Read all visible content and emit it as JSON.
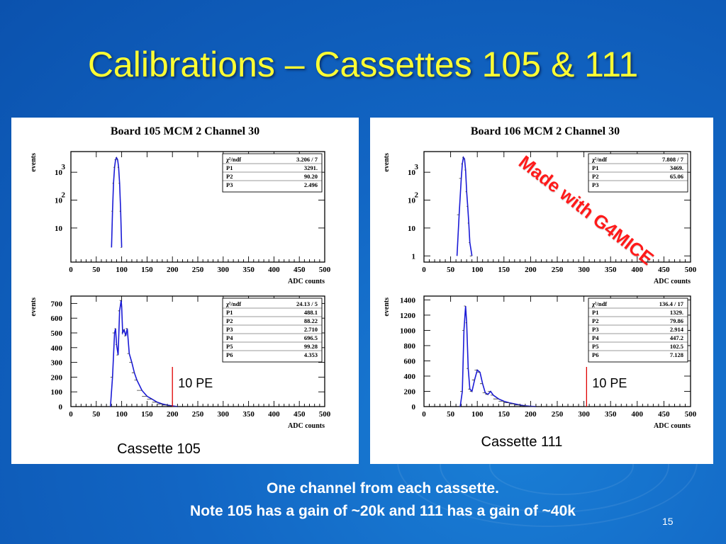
{
  "slide": {
    "title": "Calibrations – Cassettes 105 & 111",
    "stamp": "Made with G4MICE",
    "footer_line1": "One channel from each cassette.",
    "footer_line2": "Note 105 has a gain of ~20k and 111 has a gain of ~40k",
    "page_number": "15"
  },
  "chart_data": [
    {
      "panel": "left",
      "type": "histogram",
      "title": "Board 105 MCM 2 Channel 30",
      "xlabel": "ADC counts",
      "ylabel": "events",
      "x_ticks": [
        "0",
        "50",
        "100",
        "150",
        "200",
        "250",
        "300",
        "350",
        "400",
        "450",
        "500"
      ],
      "xlim": [
        0,
        500
      ],
      "yscale": "log",
      "y_ticks": [
        "10",
        "10 2",
        "10 3"
      ],
      "stats": [
        [
          "χ²/ndf",
          "3.206 / 7"
        ],
        [
          "P1",
          "3291."
        ],
        [
          "P2",
          "90.20"
        ],
        [
          "P3",
          "2.496"
        ]
      ],
      "x": [
        80,
        82,
        84,
        86,
        88,
        90,
        92,
        94,
        96,
        98,
        100
      ],
      "y": [
        2,
        40,
        400,
        1500,
        2800,
        3300,
        2800,
        1500,
        400,
        40,
        2
      ],
      "color": "#1a1ad6"
    },
    {
      "panel": "left",
      "type": "histogram",
      "title": "",
      "xlabel": "ADC counts",
      "ylabel": "events",
      "x_ticks": [
        "0",
        "50",
        "100",
        "150",
        "200",
        "250",
        "300",
        "350",
        "400",
        "450",
        "500"
      ],
      "xlim": [
        0,
        500
      ],
      "ylim": [
        0,
        750
      ],
      "y_ticks": [
        "0",
        "100",
        "200",
        "300",
        "400",
        "500",
        "600",
        "700"
      ],
      "stats": [
        [
          "χ²/ndf",
          "24.13 / 5"
        ],
        [
          "P1",
          "488.1"
        ],
        [
          "P2",
          "88.22"
        ],
        [
          "P3",
          "2.710"
        ],
        [
          "P4",
          "696.5"
        ],
        [
          "P5",
          "99.28"
        ],
        [
          "P6",
          "4.353"
        ]
      ],
      "x": [
        78,
        82,
        86,
        88,
        90,
        93,
        96,
        99,
        100,
        102,
        105,
        108,
        111,
        115,
        120,
        125,
        130,
        140,
        150,
        160,
        170,
        180,
        190,
        200,
        210
      ],
      "y": [
        0,
        200,
        500,
        530,
        420,
        350,
        650,
        720,
        680,
        500,
        520,
        480,
        530,
        360,
        300,
        230,
        180,
        110,
        70,
        50,
        30,
        18,
        10,
        5,
        0
      ],
      "color": "#1a1ad6",
      "marker_x": 200,
      "marker_label": "10 PE",
      "caption": "Cassette 105"
    },
    {
      "panel": "right",
      "type": "histogram",
      "title": "Board 106 MCM 2 Channel 30",
      "xlabel": "ADC counts",
      "ylabel": "events",
      "x_ticks": [
        "0",
        "50",
        "100",
        "150",
        "200",
        "250",
        "300",
        "350",
        "400",
        "450",
        "500"
      ],
      "xlim": [
        0,
        500
      ],
      "yscale": "log",
      "y_ticks": [
        "1",
        "10",
        "10 2",
        "10 3"
      ],
      "stats": [
        [
          "χ²/ndf",
          "7.808 / 7"
        ],
        [
          "P1",
          "3469."
        ],
        [
          "P2",
          "65.06"
        ],
        [
          "P3",
          ""
        ]
      ],
      "x": [
        62,
        66,
        70,
        72,
        74,
        76,
        78,
        80,
        82,
        84,
        86,
        90
      ],
      "y": [
        1,
        30,
        600,
        2000,
        3400,
        3000,
        1200,
        200,
        60,
        15,
        3,
        1
      ],
      "color": "#1a1ad6"
    },
    {
      "panel": "right",
      "type": "histogram",
      "title": "",
      "xlabel": "ADC counts",
      "ylabel": "events",
      "x_ticks": [
        "0",
        "50",
        "100",
        "150",
        "200",
        "250",
        "300",
        "350",
        "400",
        "450",
        "500"
      ],
      "xlim": [
        0,
        500
      ],
      "ylim": [
        0,
        1450
      ],
      "y_ticks": [
        "0",
        "200",
        "400",
        "600",
        "800",
        "1000",
        "1200",
        "1400"
      ],
      "stats": [
        [
          "χ²/ndf",
          "136.4 / 17"
        ],
        [
          "P1",
          "1329."
        ],
        [
          "P2",
          "79.86"
        ],
        [
          "P3",
          "2.914"
        ],
        [
          "P4",
          "447.2"
        ],
        [
          "P5",
          "102.5"
        ],
        [
          "P6",
          "7.128"
        ]
      ],
      "x": [
        68,
        72,
        75,
        78,
        80,
        83,
        86,
        90,
        95,
        100,
        105,
        110,
        115,
        120,
        125,
        130,
        140,
        150,
        160,
        170,
        180,
        190,
        200,
        210
      ],
      "y": [
        0,
        200,
        1000,
        1320,
        1100,
        500,
        230,
        200,
        350,
        480,
        450,
        300,
        180,
        160,
        200,
        150,
        100,
        70,
        50,
        35,
        20,
        10,
        5,
        0
      ],
      "color": "#1a1ad6",
      "marker_x": 305,
      "marker_label": "10 PE",
      "caption": "Cassette 111"
    }
  ]
}
